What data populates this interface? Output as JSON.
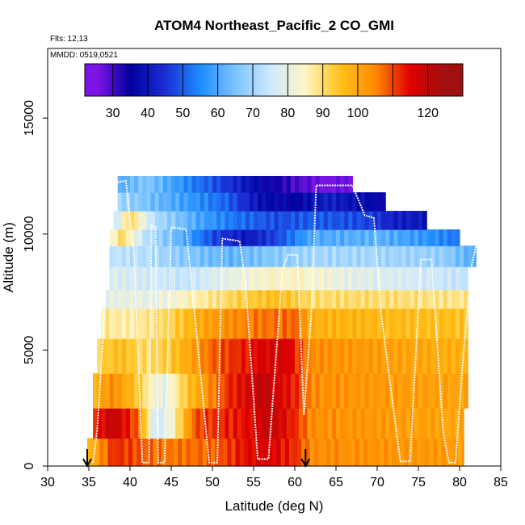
{
  "chart_data": {
    "type": "heatmap",
    "title": "ATOM4 Northeast_Pacific_2 CO_GMI",
    "annotations": [
      "Flts: 12,13",
      "MMDD: 0519,0521"
    ],
    "xlabel": "Latitude (deg N)",
    "ylabel": "Altitude (m)",
    "xlim": [
      30,
      85
    ],
    "ylim": [
      0,
      18000
    ],
    "xticks": [
      30,
      35,
      40,
      45,
      50,
      55,
      60,
      65,
      70,
      75,
      80,
      85
    ],
    "yticks": [
      0,
      5000,
      10000,
      15000
    ],
    "colorbar": {
      "range": [
        22,
        130
      ],
      "ticks": [
        30,
        40,
        50,
        60,
        70,
        80,
        90,
        100,
        120
      ],
      "boundaries": [
        22,
        30,
        40,
        50,
        60,
        70,
        80,
        90,
        100,
        110,
        120,
        130
      ],
      "colors": [
        "#7b14e6",
        "#00009e",
        "#1b2fd4",
        "#1e8cff",
        "#7cc4ff",
        "#cde9ff",
        "#fff5c4",
        "#ffc21a",
        "#ff8a00",
        "#e00000",
        "#a01010"
      ]
    },
    "flight_markers_lat": [
      34.8,
      61.3
    ],
    "layers": [
      {
        "z0": 0,
        "z1": 1200,
        "lat_min": 34.8,
        "lat_max": 80.5,
        "points": [
          [
            34.8,
            95
          ],
          [
            38,
            112
          ],
          [
            45,
            106
          ],
          [
            50,
            108
          ],
          [
            56,
            117
          ],
          [
            60,
            112
          ],
          [
            62,
            104
          ],
          [
            80.5,
            102
          ]
        ]
      },
      {
        "z0": 1200,
        "z1": 2500,
        "lat_min": 35.5,
        "lat_max": 80.5,
        "points": [
          [
            35.5,
            112
          ],
          [
            38,
            120
          ],
          [
            41,
            108
          ],
          [
            43,
            75
          ],
          [
            45,
            82
          ],
          [
            48,
            110
          ],
          [
            54,
            114
          ],
          [
            57,
            120
          ],
          [
            60,
            112
          ],
          [
            62,
            104
          ],
          [
            80.5,
            100
          ]
        ]
      },
      {
        "z0": 2500,
        "z1": 4000,
        "lat_min": 35.5,
        "lat_max": 81,
        "points": [
          [
            35.5,
            98
          ],
          [
            38,
            104
          ],
          [
            41,
            94
          ],
          [
            44,
            78
          ],
          [
            47,
            95
          ],
          [
            52,
            112
          ],
          [
            56,
            120
          ],
          [
            60,
            113
          ],
          [
            62,
            104
          ],
          [
            81,
            100
          ]
        ]
      },
      {
        "z0": 4000,
        "z1": 5500,
        "lat_min": 36,
        "lat_max": 81,
        "points": [
          [
            36,
            92
          ],
          [
            39,
            96
          ],
          [
            42,
            90
          ],
          [
            45,
            94
          ],
          [
            50,
            108
          ],
          [
            55,
            115
          ],
          [
            59,
            117
          ],
          [
            62,
            104
          ],
          [
            81,
            98
          ]
        ]
      },
      {
        "z0": 5500,
        "z1": 6800,
        "lat_min": 36.5,
        "lat_max": 81,
        "points": [
          [
            36.5,
            88
          ],
          [
            40,
            86
          ],
          [
            45,
            92
          ],
          [
            50,
            102
          ],
          [
            55,
            106
          ],
          [
            60,
            108
          ],
          [
            62,
            98
          ],
          [
            81,
            95
          ]
        ]
      },
      {
        "z0": 6800,
        "z1": 7600,
        "lat_min": 37,
        "lat_max": 81,
        "points": [
          [
            37,
            80
          ],
          [
            43,
            80
          ],
          [
            48,
            86
          ],
          [
            53,
            92
          ],
          [
            58,
            96
          ],
          [
            62,
            90
          ],
          [
            70,
            90
          ],
          [
            81,
            88
          ]
        ]
      },
      {
        "z0": 7600,
        "z1": 8600,
        "lat_min": 37.5,
        "lat_max": 81,
        "points": [
          [
            37.5,
            78
          ],
          [
            42,
            76
          ],
          [
            47,
            74
          ],
          [
            52,
            80
          ],
          [
            57,
            84
          ],
          [
            61,
            84
          ],
          [
            66,
            80
          ],
          [
            81,
            74
          ]
        ]
      },
      {
        "z0": 8600,
        "z1": 9500,
        "lat_min": 37.5,
        "lat_max": 82,
        "points": [
          [
            37.5,
            74
          ],
          [
            42,
            72
          ],
          [
            47,
            66
          ],
          [
            52,
            62
          ],
          [
            57,
            66
          ],
          [
            62,
            70
          ],
          [
            70,
            70
          ],
          [
            78,
            68
          ],
          [
            82,
            60
          ]
        ]
      },
      {
        "z0": 9500,
        "z1": 10200,
        "lat_min": 37.5,
        "lat_max": 80,
        "points": [
          [
            37.5,
            80
          ],
          [
            39,
            92
          ],
          [
            42,
            72
          ],
          [
            46,
            62
          ],
          [
            50,
            48
          ],
          [
            54,
            40
          ],
          [
            58,
            48
          ],
          [
            62,
            60
          ],
          [
            70,
            62
          ],
          [
            78,
            55
          ],
          [
            80,
            52
          ]
        ]
      },
      {
        "z0": 10200,
        "z1": 11000,
        "lat_min": 38,
        "lat_max": 76,
        "points": [
          [
            38,
            72
          ],
          [
            40,
            92
          ],
          [
            43,
            72
          ],
          [
            48,
            60
          ],
          [
            53,
            52
          ],
          [
            58,
            48
          ],
          [
            62,
            50
          ],
          [
            68,
            48
          ],
          [
            72,
            42
          ],
          [
            76,
            40
          ]
        ]
      },
      {
        "z0": 11000,
        "z1": 11800,
        "lat_min": 38.5,
        "lat_max": 71,
        "points": [
          [
            38.5,
            70
          ],
          [
            42,
            65
          ],
          [
            47,
            58
          ],
          [
            52,
            50
          ],
          [
            56,
            38
          ],
          [
            60,
            35
          ],
          [
            64,
            42
          ],
          [
            68,
            38
          ],
          [
            71,
            35
          ]
        ]
      },
      {
        "z0": 11800,
        "z1": 12500,
        "lat_min": 38.5,
        "lat_max": 67,
        "points": [
          [
            38.5,
            60
          ],
          [
            42,
            66
          ],
          [
            47,
            55
          ],
          [
            52,
            45
          ],
          [
            56,
            36
          ],
          [
            60,
            30
          ],
          [
            63,
            26
          ],
          [
            67,
            26
          ]
        ]
      }
    ],
    "flight_track": [
      [
        35.5,
        150
      ],
      [
        36,
        1500
      ],
      [
        36.8,
        6000
      ],
      [
        37.5,
        11000
      ],
      [
        38,
        12200
      ],
      [
        39.5,
        12300
      ],
      [
        40.5,
        9000
      ],
      [
        41.5,
        150
      ],
      [
        42.3,
        150
      ],
      [
        42.6,
        10400
      ],
      [
        43.1,
        10300
      ],
      [
        43.4,
        150
      ],
      [
        44.2,
        150
      ],
      [
        45,
        10300
      ],
      [
        46.8,
        10200
      ],
      [
        48,
        6000
      ],
      [
        49.6,
        150
      ],
      [
        50.6,
        150
      ],
      [
        51.2,
        9800
      ],
      [
        53.3,
        9700
      ],
      [
        54,
        8000
      ],
      [
        55.5,
        300
      ],
      [
        56.8,
        300
      ],
      [
        58.5,
        8500
      ],
      [
        59.2,
        9100
      ],
      [
        60.3,
        9100
      ],
      [
        61.1,
        2200
      ],
      [
        62,
        6500
      ],
      [
        62.6,
        12100
      ],
      [
        67,
        12100
      ],
      [
        68.5,
        10800
      ],
      [
        69.6,
        10700
      ],
      [
        70.5,
        6500
      ],
      [
        72.8,
        200
      ],
      [
        74,
        200
      ],
      [
        75.3,
        8900
      ],
      [
        76.6,
        8900
      ],
      [
        78,
        1500
      ],
      [
        78.7,
        150
      ],
      [
        79.5,
        150
      ],
      [
        80.5,
        5000
      ],
      [
        81.5,
        8700
      ],
      [
        82,
        9500
      ]
    ]
  }
}
